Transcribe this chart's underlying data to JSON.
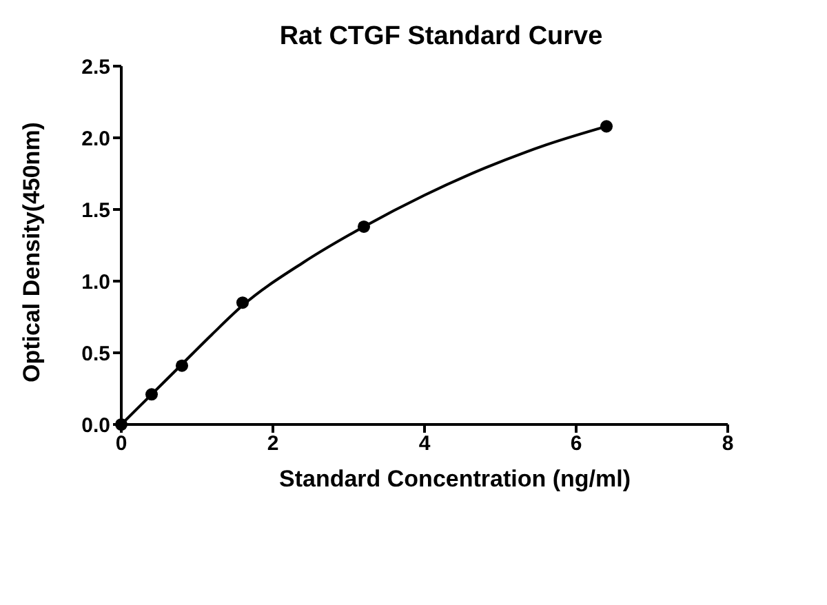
{
  "chart_data": {
    "type": "scatter",
    "title": "Rat CTGF Standard Curve",
    "xlabel": "Standard Concentration (ng/ml)",
    "ylabel": "Optical Density(450nm)",
    "x": [
      0,
      0.4,
      0.8,
      1.6,
      3.2,
      6.4
    ],
    "series": [
      {
        "color": "#000000",
        "marker": "circle",
        "values": [
          0,
          0.21,
          0.41,
          0.85,
          1.38,
          2.08
        ]
      },
      {
        "type": "line",
        "color": "#000000",
        "marker": "none",
        "line_style": "solid",
        "x": [
          0,
          0.4,
          0.8,
          1.2,
          1.6,
          2.4,
          3.2,
          4,
          4.8,
          5.6,
          6.4
        ],
        "values": [
          0,
          0.21,
          0.42,
          0.63,
          0.83,
          1.13,
          1.38,
          1.6,
          1.79,
          1.95,
          2.08
        ]
      }
    ],
    "xlim": [
      0,
      8
    ],
    "xticks": [
      0,
      2,
      4,
      6,
      8
    ],
    "ylim": [
      0,
      2.5
    ],
    "yticks": [
      {
        "value": 0,
        "label": "0.0"
      },
      {
        "value": 0.5,
        "label": "0.5"
      },
      {
        "value": 1,
        "label": "1.0"
      },
      {
        "value": 1.5,
        "label": "1.5"
      },
      {
        "value": 2,
        "label": "2.0"
      },
      {
        "value": 2.5,
        "label": "2.5"
      }
    ],
    "grid": false,
    "legend": false
  }
}
